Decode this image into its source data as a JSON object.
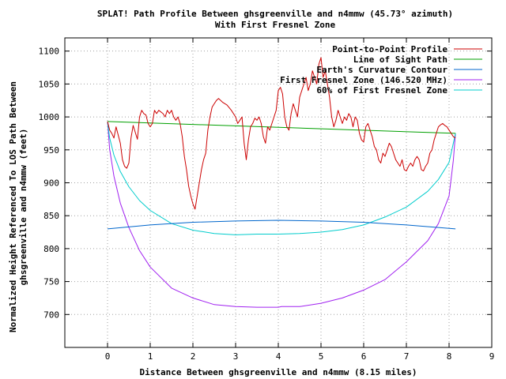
{
  "chart_data": {
    "type": "line",
    "title": "SPLAT! Path Profile Between ghsgreenville and n4mmw (45.73° azimuth)",
    "subtitle": "With First Fresnel Zone",
    "xlabel": "Distance Between ghsgreenville and n4mmw (8.15 miles)",
    "ylabel_lines": [
      "Normalized Height Referenced To LOS Path Between",
      "ghsgreenville and n4mmw (feet)"
    ],
    "xlim": [
      -1,
      9
    ],
    "ylim": [
      650,
      1120
    ],
    "xticks": [
      0,
      1,
      2,
      3,
      4,
      5,
      6,
      7,
      8,
      9
    ],
    "yticks": [
      700,
      750,
      800,
      850,
      900,
      950,
      1000,
      1050,
      1100
    ],
    "grid": true,
    "legend_position": "top-right",
    "series": [
      {
        "name": "Point-to-Point Profile",
        "color": "#cc0000",
        "x": [
          0,
          0.05,
          0.1,
          0.15,
          0.2,
          0.3,
          0.35,
          0.4,
          0.45,
          0.5,
          0.55,
          0.6,
          0.7,
          0.75,
          0.8,
          0.85,
          0.9,
          0.95,
          1.0,
          1.05,
          1.1,
          1.15,
          1.2,
          1.3,
          1.35,
          1.4,
          1.45,
          1.5,
          1.55,
          1.6,
          1.65,
          1.7,
          1.75,
          1.8,
          1.85,
          1.9,
          1.95,
          2.0,
          2.05,
          2.1,
          2.15,
          2.2,
          2.25,
          2.3,
          2.35,
          2.4,
          2.45,
          2.5,
          2.55,
          2.6,
          2.7,
          2.8,
          2.9,
          3.0,
          3.05,
          3.1,
          3.15,
          3.2,
          3.25,
          3.3,
          3.35,
          3.4,
          3.45,
          3.5,
          3.55,
          3.6,
          3.65,
          3.7,
          3.75,
          3.8,
          3.85,
          3.9,
          3.95,
          4.0,
          4.05,
          4.1,
          4.15,
          4.2,
          4.25,
          4.3,
          4.35,
          4.4,
          4.45,
          4.5,
          4.55,
          4.6,
          4.65,
          4.7,
          4.75,
          4.8,
          4.85,
          4.9,
          4.95,
          5.0,
          5.05,
          5.1,
          5.15,
          5.2,
          5.25,
          5.3,
          5.35,
          5.4,
          5.45,
          5.5,
          5.55,
          5.6,
          5.65,
          5.7,
          5.75,
          5.8,
          5.85,
          5.9,
          5.95,
          6.0,
          6.05,
          6.1,
          6.15,
          6.2,
          6.25,
          6.3,
          6.35,
          6.4,
          6.45,
          6.5,
          6.55,
          6.6,
          6.65,
          6.7,
          6.75,
          6.8,
          6.85,
          6.9,
          6.95,
          7.0,
          7.05,
          7.1,
          7.15,
          7.2,
          7.25,
          7.3,
          7.35,
          7.4,
          7.45,
          7.5,
          7.55,
          7.6,
          7.65,
          7.7,
          7.75,
          7.8,
          7.85,
          7.9,
          7.95,
          8.0,
          8.05,
          8.1,
          8.15
        ],
        "y": [
          993,
          980,
          975,
          968,
          985,
          960,
          935,
          925,
          922,
          930,
          968,
          987,
          966,
          1000,
          1010,
          1005,
          1003,
          990,
          985,
          990,
          1010,
          1005,
          1010,
          1005,
          1000,
          1010,
          1005,
          1010,
          1000,
          995,
          1000,
          990,
          970,
          940,
          920,
          895,
          880,
          868,
          860,
          880,
          900,
          920,
          935,
          945,
          980,
          1000,
          1015,
          1020,
          1025,
          1028,
          1022,
          1018,
          1010,
          1000,
          990,
          995,
          1000,
          960,
          935,
          965,
          985,
          990,
          998,
          995,
          1000,
          990,
          970,
          960,
          985,
          980,
          990,
          1000,
          1010,
          1040,
          1045,
          1035,
          1000,
          985,
          980,
          1005,
          1020,
          1010,
          1000,
          1030,
          1040,
          1050,
          1060,
          1040,
          1050,
          1070,
          1060,
          1050,
          1080,
          1090,
          1060,
          1070,
          1050,
          1030,
          1000,
          985,
          995,
          1010,
          1000,
          990,
          1000,
          995,
          1005,
          1000,
          985,
          1000,
          995,
          975,
          965,
          962,
          985,
          990,
          980,
          970,
          955,
          950,
          935,
          930,
          945,
          940,
          950,
          960,
          955,
          945,
          935,
          930,
          925,
          935,
          920,
          918,
          925,
          930,
          925,
          935,
          940,
          935,
          920,
          918,
          925,
          930,
          945,
          950,
          965,
          975,
          985,
          988,
          990,
          987,
          985,
          980,
          975,
          970,
          968
        ]
      },
      {
        "name": "Line of Sight Path",
        "color": "#00a000",
        "x": [
          0,
          8.15
        ],
        "y": [
          993,
          975
        ]
      },
      {
        "name": "Earth's Curvature Contour",
        "color": "#0066cc",
        "x": [
          0,
          1,
          2,
          3,
          4,
          5,
          6,
          7,
          8.15
        ],
        "y": [
          830,
          836,
          840,
          842,
          843,
          842,
          840,
          836,
          830
        ]
      },
      {
        "name": "First Fresnel Zone (146.520 MHz)",
        "color": "#a020f0",
        "x": [
          0,
          0.05,
          0.15,
          0.3,
          0.5,
          0.75,
          1.0,
          1.5,
          2.0,
          2.5,
          3.0,
          3.5,
          4.0,
          4.075,
          4.5,
          5.0,
          5.5,
          6.0,
          6.5,
          7.0,
          7.5,
          7.75,
          8.0,
          8.1,
          8.15
        ],
        "y": [
          993,
          951,
          910,
          869,
          832,
          797,
          772,
          740,
          725,
          715,
          712,
          711,
          711,
          712,
          712,
          717,
          725,
          737,
          753,
          780,
          812,
          838,
          880,
          934,
          975
        ]
      },
      {
        "name": "60% of First Fresnel Zone",
        "color": "#00cccc",
        "x": [
          0,
          0.05,
          0.15,
          0.3,
          0.5,
          0.75,
          1.0,
          1.5,
          2.0,
          2.5,
          3.0,
          3.5,
          4.0,
          4.5,
          5.0,
          5.5,
          6.0,
          6.5,
          7.0,
          7.5,
          7.75,
          8.0,
          8.1,
          8.15
        ],
        "y": [
          993,
          968,
          942,
          917,
          894,
          873,
          858,
          838,
          828,
          823,
          821,
          822,
          822,
          823,
          825,
          829,
          836,
          848,
          863,
          887,
          905,
          931,
          960,
          975
        ]
      }
    ]
  }
}
